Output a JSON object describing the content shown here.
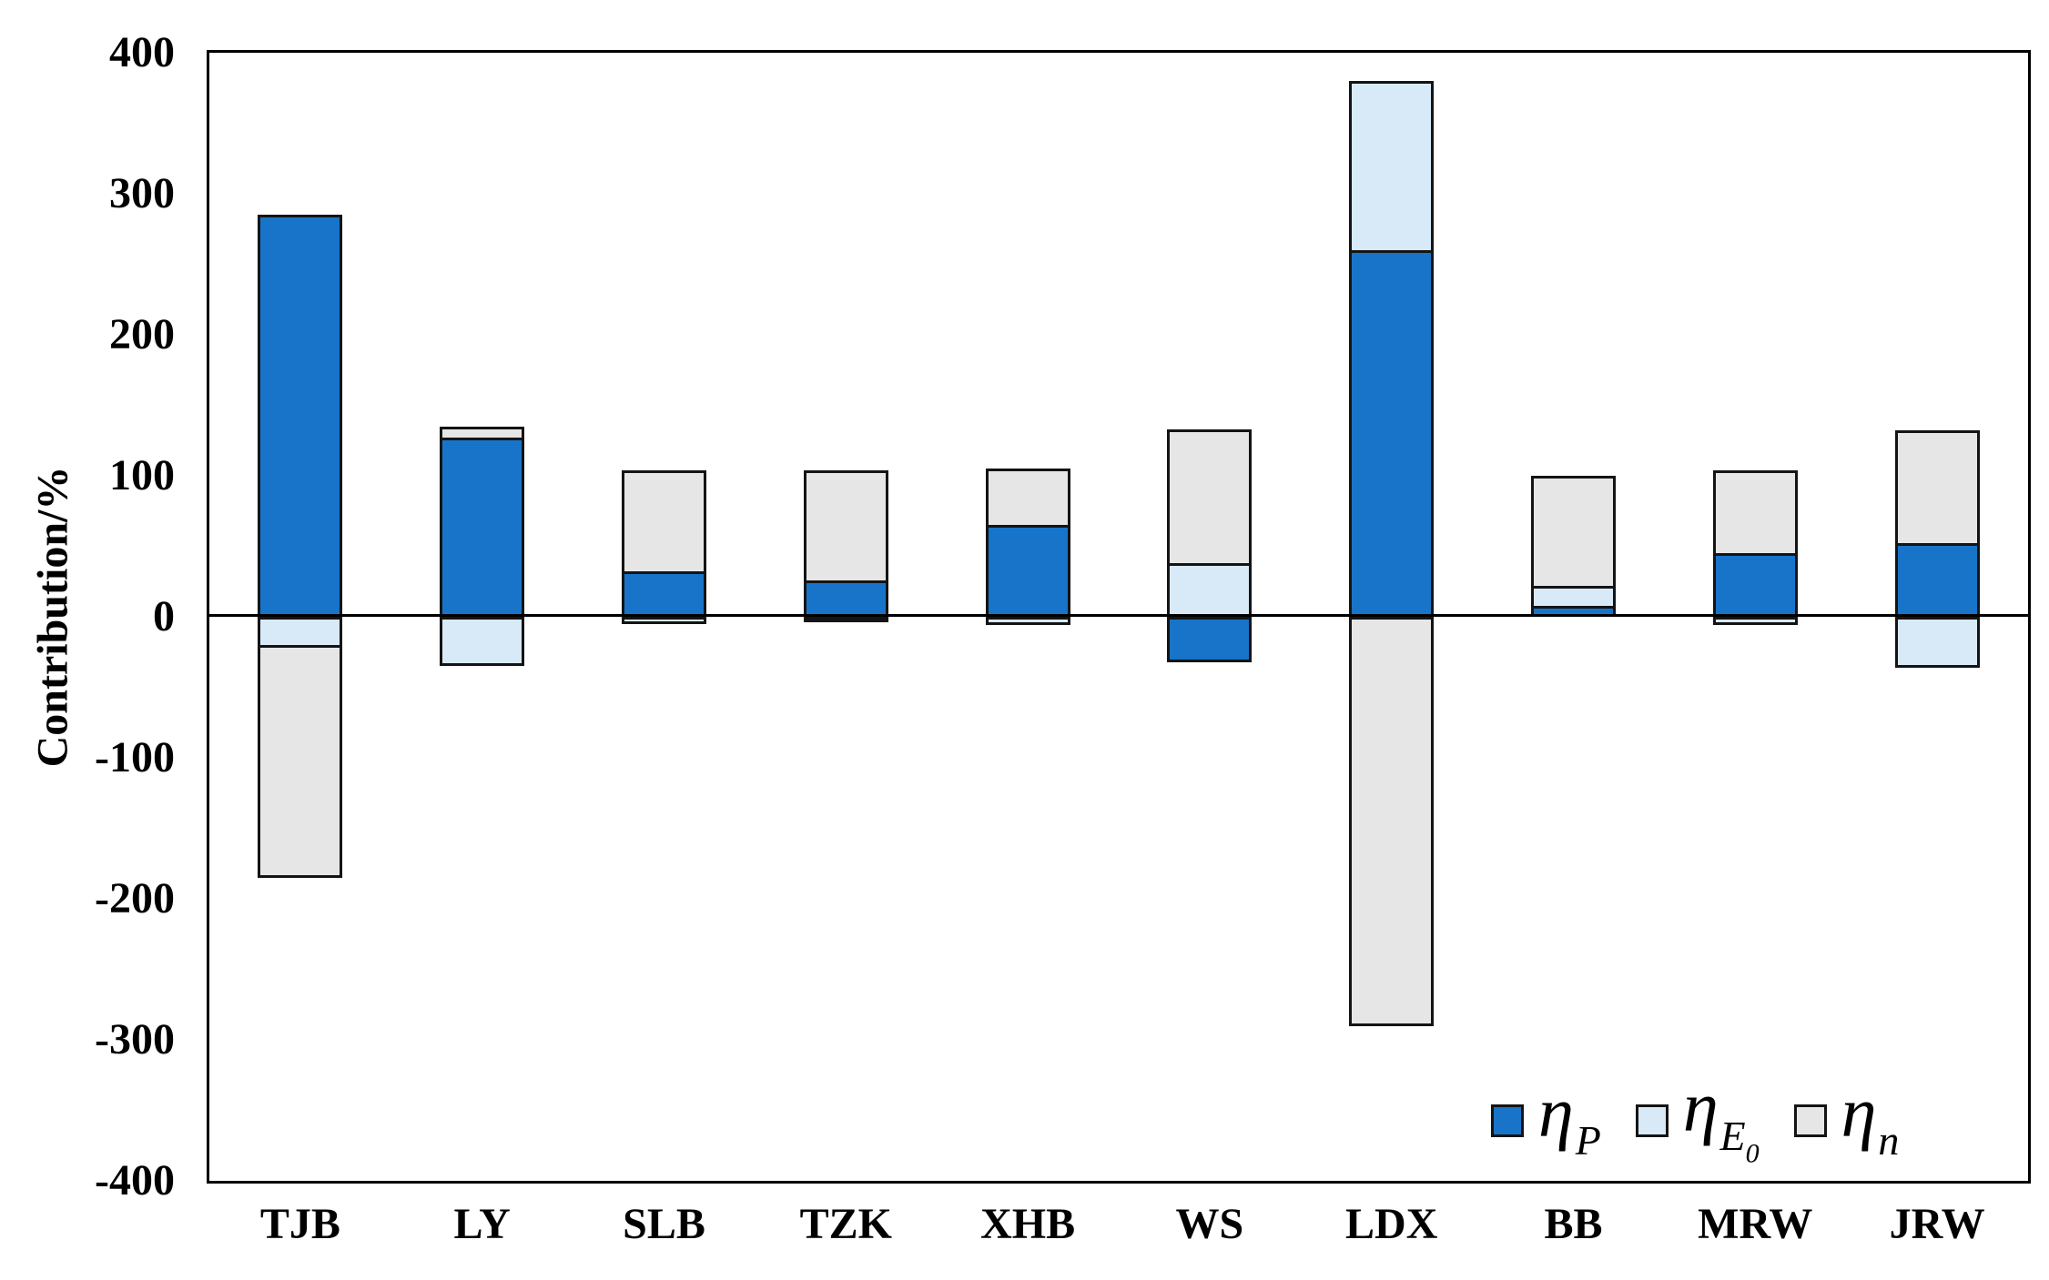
{
  "figure": {
    "background": "#ffffff",
    "frame_color": "#000000",
    "bar_outline_color": "#141414"
  },
  "chart_data": {
    "type": "bar",
    "stacked": true,
    "grid": false,
    "zero_line": true,
    "legend_position": "inside bottom-right",
    "ylabel": "Contribution/%",
    "xlabel": "",
    "ylim": [
      -400,
      400
    ],
    "ytick_step": 100,
    "yticks": [
      "400",
      "300",
      "200",
      "100",
      "0",
      "-100",
      "-200",
      "-300",
      "-400"
    ],
    "categories": [
      "TJB",
      "LY",
      "SLB",
      "TZK",
      "XHB",
      "WS",
      "LDX",
      "BB",
      "MRW",
      "JRW"
    ],
    "series": [
      {
        "name": "eta_P",
        "label": {
          "symbol": "η",
          "sub": "P"
        },
        "color": "#1874C9",
        "values": [
          285,
          127,
          32,
          26,
          65,
          -32,
          260,
          8,
          45,
          52
        ]
      },
      {
        "name": "eta_E0",
        "label": {
          "symbol": "η",
          "sub": "E",
          "subsub": "0"
        },
        "color": "#D8E9F7",
        "values": [
          -22,
          -35,
          -5,
          -4,
          -6,
          38,
          120,
          14,
          -6,
          -36
        ]
      },
      {
        "name": "eta_n",
        "label": {
          "symbol": "η",
          "sub": "n"
        },
        "color": "#E6E6E6",
        "values": [
          -163,
          8,
          72,
          78,
          40,
          95,
          -290,
          78,
          59,
          80
        ]
      }
    ]
  }
}
